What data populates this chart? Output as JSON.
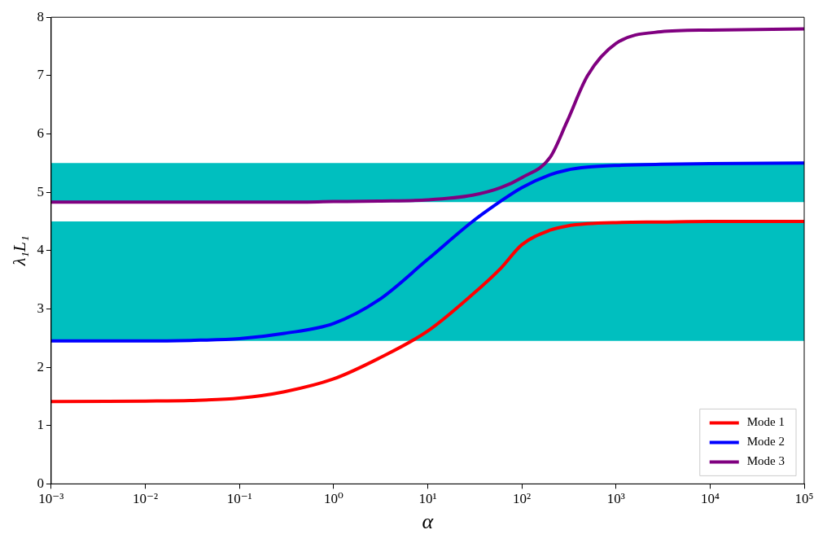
{
  "chart_data": {
    "type": "line",
    "xlabel": "α",
    "ylabel": "λ₁L₁",
    "log": "x",
    "xlim": [
      0.001,
      100000
    ],
    "ylim": [
      0,
      8
    ],
    "xticks": [
      {
        "value": 0.001,
        "label": "10⁻³"
      },
      {
        "value": 0.01,
        "label": "10⁻²"
      },
      {
        "value": 0.1,
        "label": "10⁻¹"
      },
      {
        "value": 1,
        "label": "10⁰"
      },
      {
        "value": 10,
        "label": "10¹"
      },
      {
        "value": 100,
        "label": "10²"
      },
      {
        "value": 1000,
        "label": "10³"
      },
      {
        "value": 10000,
        "label": "10⁴"
      },
      {
        "value": 100000,
        "label": "10⁵"
      }
    ],
    "yticks": [
      0,
      1,
      2,
      3,
      4,
      5,
      6,
      7,
      8
    ],
    "grid": false,
    "legend": "bottom right",
    "marker": "none",
    "line_style": "solid",
    "bands": [
      {
        "axis": "y",
        "from": 2.45,
        "to": 4.5,
        "color": "#00bfbf"
      },
      {
        "axis": "y",
        "from": 4.83,
        "to": 5.5,
        "color": "#00bfbf"
      }
    ],
    "x": [
      0.001,
      0.01,
      0.03,
      0.1,
      0.3,
      1,
      3,
      10,
      30,
      60,
      100,
      200,
      300,
      500,
      1000,
      3000,
      10000,
      100000
    ],
    "series": [
      {
        "name": "Mode 1",
        "color": "#ff0000",
        "values": [
          1.41,
          1.42,
          1.43,
          1.47,
          1.58,
          1.8,
          2.15,
          2.62,
          3.25,
          3.7,
          4.1,
          4.35,
          4.42,
          4.46,
          4.48,
          4.49,
          4.5,
          4.5
        ]
      },
      {
        "name": "Mode 2",
        "color": "#0000ff",
        "values": [
          2.45,
          2.45,
          2.46,
          2.49,
          2.58,
          2.75,
          3.15,
          3.85,
          4.5,
          4.85,
          5.08,
          5.3,
          5.38,
          5.43,
          5.46,
          5.48,
          5.49,
          5.5
        ]
      },
      {
        "name": "Mode 3",
        "color": "#800080",
        "values": [
          4.83,
          4.83,
          4.83,
          4.83,
          4.83,
          4.84,
          4.85,
          4.87,
          4.95,
          5.08,
          5.25,
          5.6,
          6.2,
          7.0,
          7.55,
          7.75,
          7.78,
          7.8
        ]
      }
    ]
  }
}
